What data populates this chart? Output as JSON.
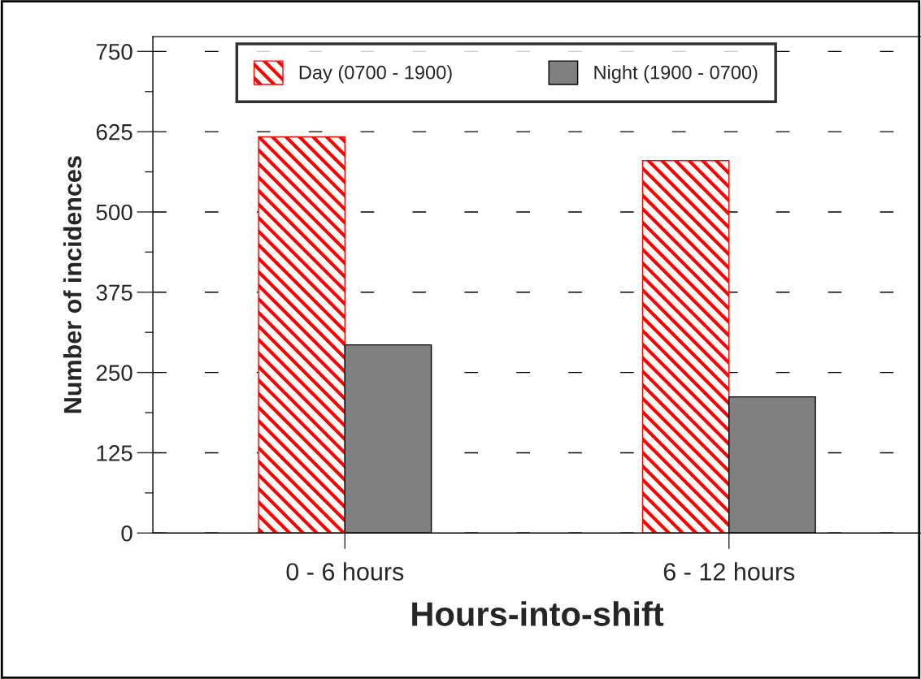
{
  "chart_data": {
    "type": "bar",
    "xlabel": "Hours-into-shift",
    "ylabel": "Number of incidences",
    "categories": [
      "0 - 6 hours",
      "6 - 12 hours"
    ],
    "series": [
      {
        "name": "Day (0700 - 1900)",
        "color": "#ff0000",
        "values": [
          617,
          580
        ]
      },
      {
        "name": "Night (1900 - 0700)",
        "color": "#808080",
        "values": [
          293,
          212
        ]
      }
    ],
    "ylim": [
      0,
      773
    ],
    "yticks": [
      0,
      125,
      250,
      375,
      500,
      625,
      750
    ],
    "grid": "y",
    "legend": "top"
  }
}
